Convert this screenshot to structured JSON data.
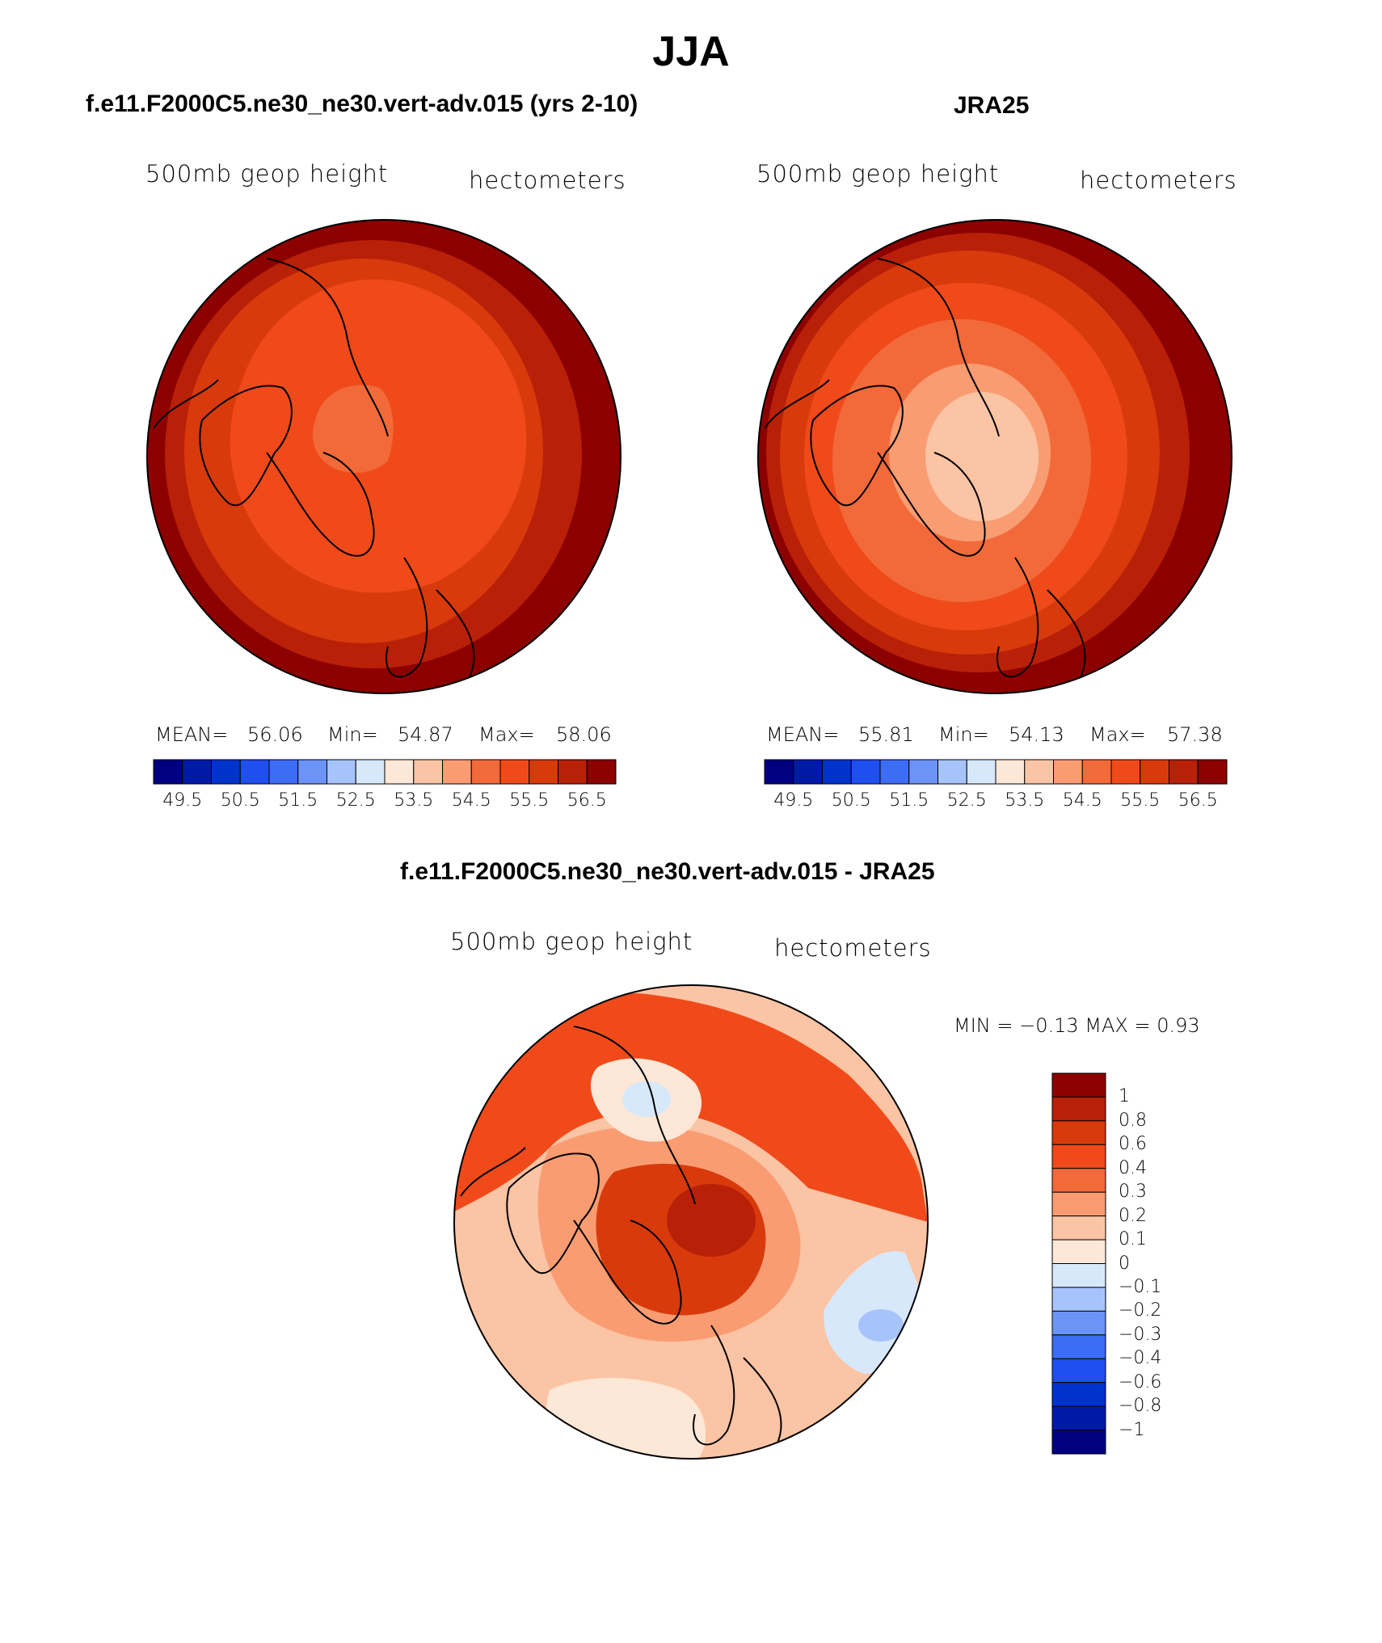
{
  "title": "JJA",
  "panels": {
    "model": {
      "subtitle": "f.e11.F2000C5.ne30_ne30.vert-adv.015 (yrs 2-10)",
      "left_label": "500mb  geop  height",
      "right_label": "hectometers",
      "mean_label": "MEAN=",
      "mean": "56.06",
      "min_label": "Min=",
      "min": "54.87",
      "max_label": "Max=",
      "max": "58.06"
    },
    "obs": {
      "subtitle": "JRA25",
      "left_label": "500mb  geop  height",
      "right_label": "hectometers",
      "mean_label": "MEAN=",
      "mean": "55.81",
      "min_label": "Min=",
      "min": "54.13",
      "max_label": "Max=",
      "max": "57.38"
    },
    "diff": {
      "subtitle": "f.e11.F2000C5.ne30_ne30.vert-adv.015 - JRA25",
      "left_label": "500mb  geop  height",
      "right_label": "hectometers",
      "minmax": "MIN =   −0.13 MAX =     0.93"
    }
  },
  "colorbars": {
    "fields": {
      "colors": [
        "#000080",
        "#001aa8",
        "#0033cc",
        "#1f4ff0",
        "#3d6cf5",
        "#6c94f7",
        "#a6c4fa",
        "#d8e8fb",
        "#fde7d7",
        "#fbc4a4",
        "#f99c72",
        "#f26a3a",
        "#f04a1a",
        "#d83a0c",
        "#b82008",
        "#8c0000"
      ],
      "ticks": [
        "49.5",
        "50.5",
        "51.5",
        "52.5",
        "53.5",
        "54.5",
        "55.5",
        "56.5"
      ]
    },
    "diff": {
      "colors": [
        "#8c0000",
        "#b82008",
        "#d83a0c",
        "#f04a1a",
        "#f26a3a",
        "#f99c72",
        "#fbc4a4",
        "#fde7d7",
        "#d8e8fb",
        "#a6c4fa",
        "#6c94f7",
        "#3d6cf5",
        "#1f4ff0",
        "#0033cc",
        "#001aa8",
        "#000080"
      ],
      "ticks": [
        "1",
        "0.8",
        "0.6",
        "0.4",
        "0.3",
        "0.2",
        "0.1",
        "0",
        "−0.1",
        "−0.2",
        "−0.3",
        "−0.4",
        "−0.6",
        "−0.8",
        "−1"
      ]
    }
  },
  "colors": {
    "outline": "#000000",
    "deep_red": "#8c0000",
    "red": "#b82008",
    "red_orange": "#d83a0c",
    "orange": "#f04a1a",
    "orange_light": "#f26a3a",
    "salmon": "#f99c72",
    "peach": "#fbc4a4",
    "cream": "#fde7d7",
    "pale_blue": "#d8e8fb",
    "light_blue": "#a6c4fa"
  }
}
